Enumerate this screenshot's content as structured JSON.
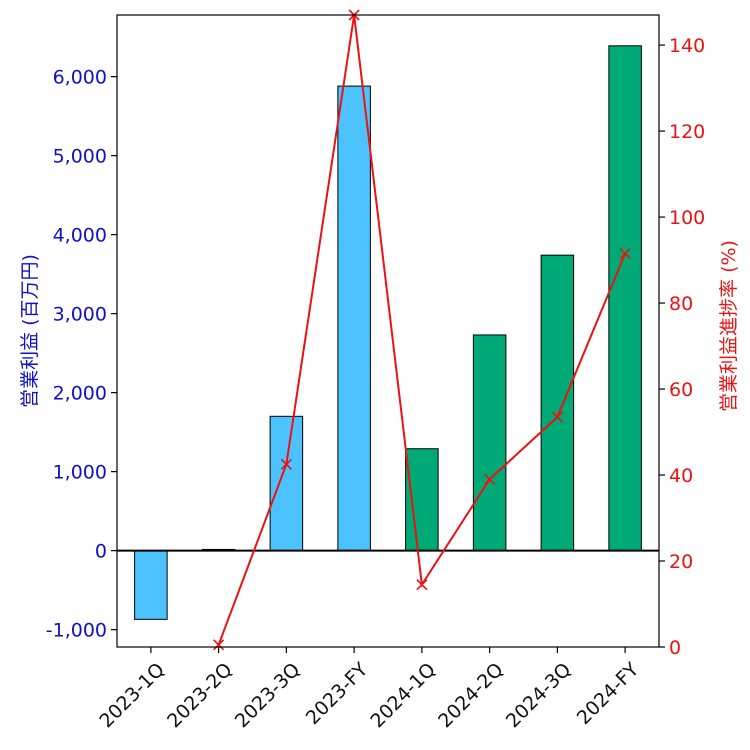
{
  "chart_data": {
    "type": "bar+line",
    "categories": [
      "2023-1Q",
      "2023-2Q",
      "2023-3Q",
      "2023-FY",
      "2024-1Q",
      "2024-2Q",
      "2024-3Q",
      "2024-FY"
    ],
    "bar_series": {
      "name": "営業利益 (百万円)",
      "values": [
        -870,
        15,
        1700,
        5880,
        1290,
        2730,
        3740,
        6390
      ],
      "colors": [
        "#4cc3ff",
        "#4cc3ff",
        "#4cc3ff",
        "#4cc3ff",
        "#00aa77",
        "#00aa77",
        "#00aa77",
        "#00aa77"
      ]
    },
    "line_series": {
      "name": "営業利益進捗率 (%)",
      "values": [
        null,
        0.5,
        42.5,
        147.0,
        14.5,
        39.0,
        53.5,
        91.5
      ],
      "color": "#ee1111",
      "marker": "x"
    },
    "ylabel_left": "営業利益 (百万円)",
    "ylabel_right": "営業利益進捗率 (%)",
    "ylim_left": [
      -1220,
      6780
    ],
    "ylim_right": [
      0,
      147
    ],
    "yticks_left": [
      -1000,
      0,
      1000,
      2000,
      3000,
      4000,
      5000,
      6000
    ],
    "yticks_left_labels": [
      "-1,000",
      "0",
      "1,000",
      "2,000",
      "3,000",
      "4,000",
      "5,000",
      "6,000"
    ],
    "yticks_right": [
      0,
      20,
      40,
      60,
      80,
      100,
      120,
      140
    ],
    "yticks_right_labels": [
      "0",
      "20",
      "40",
      "60",
      "80",
      "100",
      "120",
      "140"
    ],
    "left_axis_color": "#1010c8",
    "right_axis_color": "#ee1111"
  }
}
